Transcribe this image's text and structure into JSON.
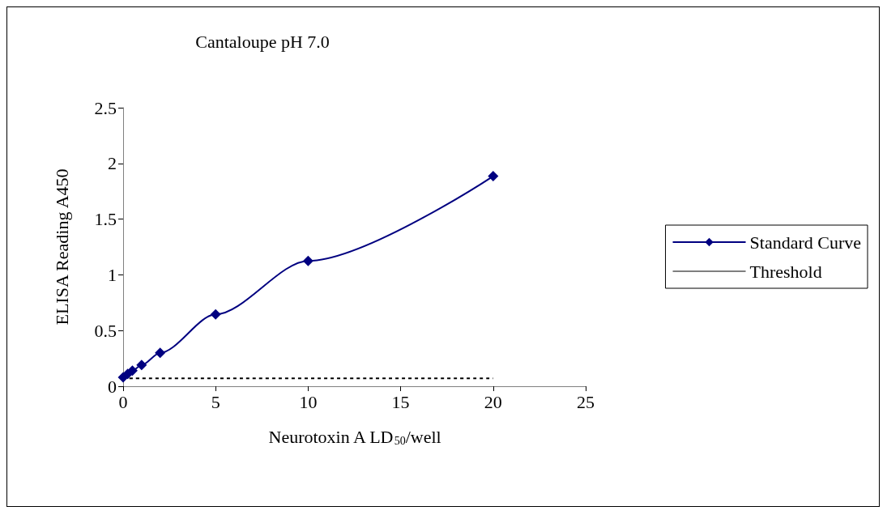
{
  "chart_data": {
    "type": "line",
    "title": "Cantaloupe pH 7.0",
    "xlabel": "Neurotoxin A LD$_{50}$/well",
    "ylabel": "ELISA Reading A450",
    "xlim": [
      0,
      25
    ],
    "xticks": [
      0,
      5,
      10,
      15,
      20,
      25
    ],
    "ylim": [
      0,
      2.5
    ],
    "yticks": [
      0,
      0.5,
      1,
      1.5,
      2,
      2.5
    ],
    "grid": false,
    "legend": "right",
    "marker": "diamond",
    "series": [
      {
        "name": "Standard Curve",
        "color": "#000080",
        "x": [
          0,
          0.25,
          0.5,
          1,
          2,
          5,
          10,
          20
        ],
        "values": [
          0.08,
          0.11,
          0.14,
          0.19,
          0.3,
          0.645,
          1.125,
          1.885
        ]
      },
      {
        "name": "Threshold",
        "color": "#000000",
        "marker": "none",
        "line_style": "dotted",
        "x": [
          0,
          20
        ],
        "values": [
          0.07,
          0.07
        ]
      }
    ]
  }
}
